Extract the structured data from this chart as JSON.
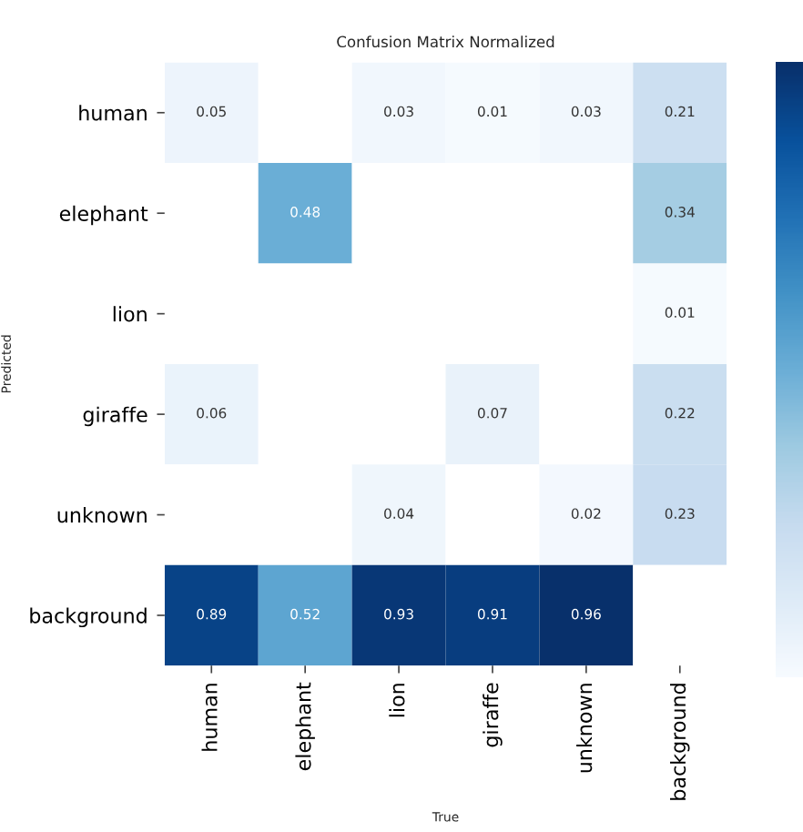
{
  "chart_data": {
    "type": "heatmap",
    "title": "Confusion Matrix Normalized",
    "xlabel": "True",
    "ylabel": "Predicted",
    "categories": [
      "human",
      "elephant",
      "lion",
      "giraffe",
      "unknown",
      "background"
    ],
    "y_categories": [
      "human",
      "elephant",
      "lion",
      "giraffe",
      "unknown",
      "background"
    ],
    "cells": [
      [
        0.05,
        null,
        0.03,
        0.01,
        0.03,
        0.21
      ],
      [
        null,
        0.48,
        null,
        null,
        null,
        0.34
      ],
      [
        null,
        null,
        null,
        null,
        null,
        0.01
      ],
      [
        0.06,
        null,
        null,
        0.07,
        null,
        0.22
      ],
      [
        null,
        null,
        0.04,
        null,
        0.02,
        0.23
      ],
      [
        0.89,
        0.52,
        0.93,
        0.91,
        0.96,
        null
      ]
    ],
    "data_labels": true
  }
}
